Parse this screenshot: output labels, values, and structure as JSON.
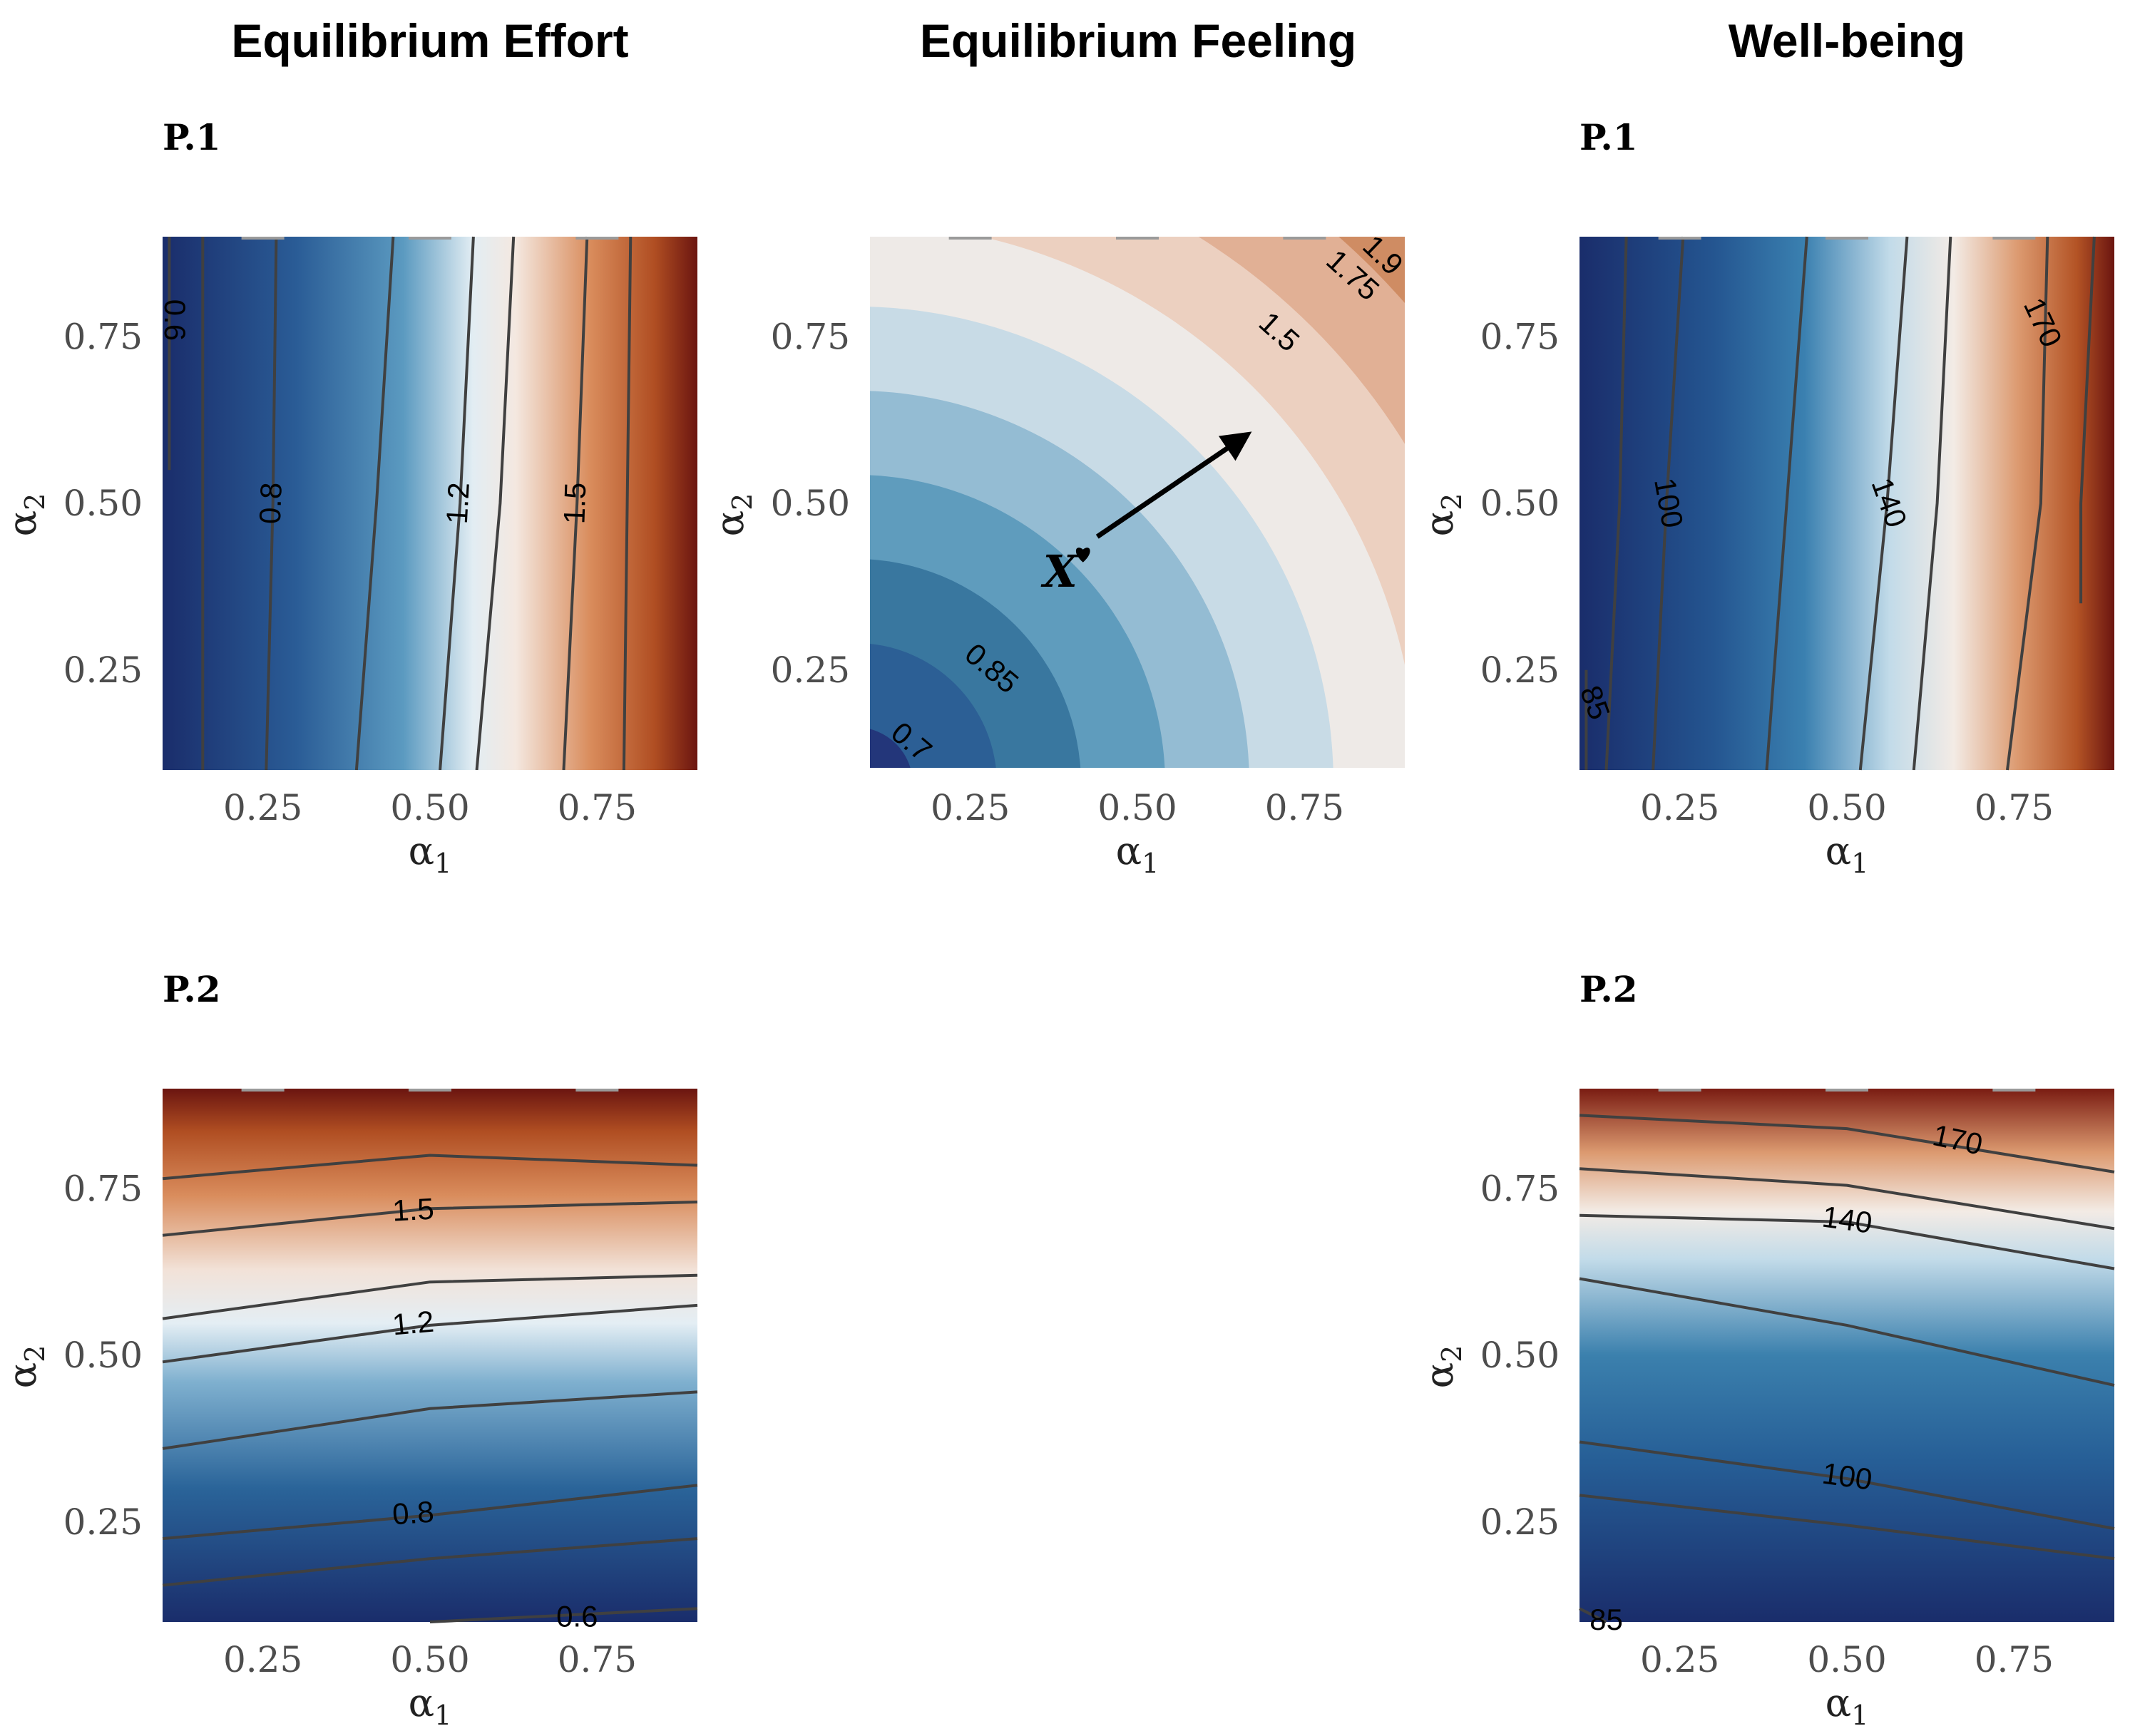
{
  "column_titles": [
    "Equilibrium Effort",
    "Equilibrium Feeling",
    "Well-being"
  ],
  "colors": {
    "low": "#1a2d6b",
    "mid_low": "#2f6fa3",
    "mid": "#f2ebe6",
    "mid_high": "#d4875a",
    "high": "#6b1510",
    "contour_line": "#404040",
    "arrow": "#000000"
  },
  "chart_data": [
    {
      "id": "effort-p1",
      "type": "heatmap",
      "column": "Equilibrium Effort",
      "panel_label": "P.1",
      "xlabel": "α1",
      "ylabel": "α2",
      "xlim": [
        0.1,
        0.9
      ],
      "ylim": [
        0.1,
        0.9
      ],
      "xticks": [
        "0.25",
        "0.50",
        "0.75"
      ],
      "yticks": [
        "0.25",
        "0.50",
        "0.75"
      ],
      "fill": "continuous",
      "gradient_direction": "x",
      "value_range": [
        0.5,
        2.1
      ],
      "contours": [
        {
          "level": "0.6",
          "labeled": true,
          "points": [
            [
              0.11,
              0.9
            ],
            [
              0.11,
              0.55
            ]
          ]
        },
        {
          "level": "0.7",
          "labeled": false,
          "points": [
            [
              0.16,
              0.9
            ],
            [
              0.16,
              0.5
            ],
            [
              0.16,
              0.1
            ]
          ]
        },
        {
          "level": "0.8",
          "labeled": true,
          "points": [
            [
              0.27,
              0.9
            ],
            [
              0.265,
              0.5
            ],
            [
              0.255,
              0.1
            ]
          ]
        },
        {
          "level": "1.0",
          "labeled": false,
          "points": [
            [
              0.445,
              0.9
            ],
            [
              0.42,
              0.5
            ],
            [
              0.39,
              0.1
            ]
          ]
        },
        {
          "level": "1.2",
          "labeled": true,
          "points": [
            [
              0.565,
              0.9
            ],
            [
              0.545,
              0.5
            ],
            [
              0.515,
              0.1
            ]
          ]
        },
        {
          "level": "1.3",
          "labeled": false,
          "points": [
            [
              0.625,
              0.9
            ],
            [
              0.605,
              0.5
            ],
            [
              0.57,
              0.1
            ]
          ]
        },
        {
          "level": "1.5",
          "labeled": true,
          "points": [
            [
              0.735,
              0.9
            ],
            [
              0.72,
              0.5
            ],
            [
              0.7,
              0.1
            ]
          ]
        },
        {
          "level": "1.7",
          "labeled": false,
          "points": [
            [
              0.8,
              0.9
            ],
            [
              0.795,
              0.5
            ],
            [
              0.79,
              0.1
            ]
          ]
        }
      ]
    },
    {
      "id": "effort-p2",
      "type": "heatmap",
      "column": "Equilibrium Effort",
      "panel_label": "P.2",
      "xlabel": "α1",
      "ylabel": "α2",
      "xlim": [
        0.1,
        0.9
      ],
      "ylim": [
        0.1,
        0.9
      ],
      "xticks": [
        "0.25",
        "0.50",
        "0.75"
      ],
      "yticks": [
        "0.25",
        "0.50",
        "0.75"
      ],
      "fill": "continuous",
      "gradient_direction": "y",
      "value_range": [
        0.5,
        2.1
      ],
      "contours": [
        {
          "level": "1.7",
          "labeled": false,
          "points": [
            [
              0.1,
              0.765
            ],
            [
              0.5,
              0.8
            ],
            [
              0.9,
              0.785
            ]
          ]
        },
        {
          "level": "1.5",
          "labeled": true,
          "points": [
            [
              0.1,
              0.68
            ],
            [
              0.5,
              0.72
            ],
            [
              0.9,
              0.73
            ]
          ]
        },
        {
          "level": "1.3",
          "labeled": false,
          "points": [
            [
              0.1,
              0.555
            ],
            [
              0.5,
              0.61
            ],
            [
              0.9,
              0.62
            ]
          ]
        },
        {
          "level": "1.2",
          "labeled": true,
          "points": [
            [
              0.1,
              0.49
            ],
            [
              0.5,
              0.545
            ],
            [
              0.9,
              0.575
            ]
          ]
        },
        {
          "level": "1.0",
          "labeled": false,
          "points": [
            [
              0.1,
              0.36
            ],
            [
              0.5,
              0.42
            ],
            [
              0.9,
              0.445
            ]
          ]
        },
        {
          "level": "0.8",
          "labeled": true,
          "points": [
            [
              0.1,
              0.225
            ],
            [
              0.5,
              0.26
            ],
            [
              0.9,
              0.305
            ]
          ]
        },
        {
          "level": "0.7",
          "labeled": false,
          "points": [
            [
              0.1,
              0.155
            ],
            [
              0.5,
              0.195
            ],
            [
              0.9,
              0.225
            ]
          ]
        },
        {
          "level": "0.6",
          "labeled": true,
          "points": [
            [
              0.5,
              0.1
            ],
            [
              0.9,
              0.12
            ]
          ]
        }
      ]
    },
    {
      "id": "feeling-p1",
      "type": "heatmap",
      "column": "Equilibrium Feeling",
      "panel_label": "",
      "xlabel": "α1",
      "ylabel": "α2",
      "xlim": [
        0.1,
        0.9
      ],
      "ylim": [
        0.1,
        0.9
      ],
      "xticks": [
        "0.25",
        "0.50",
        "0.75"
      ],
      "yticks": [
        "0.25",
        "0.50",
        "0.75"
      ],
      "fill": "banded",
      "band_colors": [
        "#23367a",
        "#2c5f95",
        "#39779f",
        "#5f9cbd",
        "#94bcd3",
        "#c8dbe6",
        "#eeeae7",
        "#ecd0c0",
        "#e1b095",
        "#cf8c63",
        "#b9683e",
        "#9a4d2a"
      ],
      "contours": [
        {
          "level": "0.7",
          "labeled": true
        },
        {
          "level": "0.85",
          "labeled": true
        },
        {
          "level": "1.5",
          "labeled": true
        },
        {
          "level": "1.75",
          "labeled": true
        },
        {
          "level": "1.9",
          "labeled": true
        }
      ],
      "annotation": {
        "marker_text": "X",
        "from": [
          0.44,
          0.45
        ],
        "to": [
          0.66,
          0.6
        ]
      }
    },
    {
      "id": "wellbeing-p1",
      "type": "heatmap",
      "column": "Well-being",
      "panel_label": "P.1",
      "xlabel": "α1",
      "ylabel": "α2",
      "xlim": [
        0.1,
        0.9
      ],
      "ylim": [
        0.1,
        0.9
      ],
      "xticks": [
        "0.25",
        "0.50",
        "0.75"
      ],
      "yticks": [
        "0.25",
        "0.50",
        "0.75"
      ],
      "fill": "continuous",
      "gradient_direction": "x",
      "value_range": [
        80,
        190
      ],
      "contours": [
        {
          "level": "85",
          "labeled": true,
          "points": [
            [
              0.11,
              0.25
            ],
            [
              0.11,
              0.1
            ]
          ]
        },
        {
          "level": "90",
          "labeled": false,
          "points": [
            [
              0.17,
              0.9
            ],
            [
              0.16,
              0.5
            ],
            [
              0.14,
              0.1
            ]
          ]
        },
        {
          "level": "100",
          "labeled": true,
          "points": [
            [
              0.255,
              0.9
            ],
            [
              0.23,
              0.5
            ],
            [
              0.21,
              0.1
            ]
          ]
        },
        {
          "level": "120",
          "labeled": false,
          "points": [
            [
              0.44,
              0.9
            ],
            [
              0.41,
              0.5
            ],
            [
              0.38,
              0.1
            ]
          ]
        },
        {
          "level": "140",
          "labeled": true,
          "points": [
            [
              0.59,
              0.9
            ],
            [
              0.56,
              0.5
            ],
            [
              0.52,
              0.1
            ]
          ]
        },
        {
          "level": "150",
          "labeled": false,
          "points": [
            [
              0.655,
              0.9
            ],
            [
              0.635,
              0.5
            ],
            [
              0.6,
              0.1
            ]
          ]
        },
        {
          "level": "170",
          "labeled": true,
          "points": [
            [
              0.8,
              0.9
            ],
            [
              0.79,
              0.5
            ],
            [
              0.74,
              0.1
            ]
          ]
        },
        {
          "level": "180",
          "labeled": false,
          "points": [
            [
              0.87,
              0.9
            ],
            [
              0.85,
              0.5
            ],
            [
              0.85,
              0.35
            ]
          ]
        }
      ]
    },
    {
      "id": "wellbeing-p2",
      "type": "heatmap",
      "column": "Well-being",
      "panel_label": "P.2",
      "xlabel": "α1",
      "ylabel": "α2",
      "xlim": [
        0.1,
        0.9
      ],
      "ylim": [
        0.1,
        0.9
      ],
      "xticks": [
        "0.25",
        "0.50",
        "0.75"
      ],
      "yticks": [
        "0.25",
        "0.50",
        "0.75"
      ],
      "fill": "continuous",
      "gradient_direction": "y",
      "value_range": [
        80,
        190
      ],
      "contours": [
        {
          "level": "170",
          "labeled": true,
          "points": [
            [
              0.1,
              0.86
            ],
            [
              0.5,
              0.84
            ],
            [
              0.9,
              0.775
            ]
          ]
        },
        {
          "level": "150",
          "labeled": false,
          "points": [
            [
              0.1,
              0.78
            ],
            [
              0.5,
              0.755
            ],
            [
              0.9,
              0.69
            ]
          ]
        },
        {
          "level": "140",
          "labeled": true,
          "points": [
            [
              0.1,
              0.71
            ],
            [
              0.5,
              0.7
            ],
            [
              0.9,
              0.63
            ]
          ]
        },
        {
          "level": "120",
          "labeled": false,
          "points": [
            [
              0.1,
              0.615
            ],
            [
              0.5,
              0.545
            ],
            [
              0.9,
              0.455
            ]
          ]
        },
        {
          "level": "100",
          "labeled": true,
          "points": [
            [
              0.1,
              0.37
            ],
            [
              0.5,
              0.315
            ],
            [
              0.9,
              0.24
            ]
          ]
        },
        {
          "level": "90",
          "labeled": false,
          "points": [
            [
              0.1,
              0.29
            ],
            [
              0.5,
              0.245
            ],
            [
              0.9,
              0.195
            ]
          ]
        },
        {
          "level": "85",
          "labeled": true,
          "points": [
            [
              0.1,
              0.12
            ],
            [
              0.14,
              0.1
            ]
          ]
        }
      ]
    }
  ]
}
